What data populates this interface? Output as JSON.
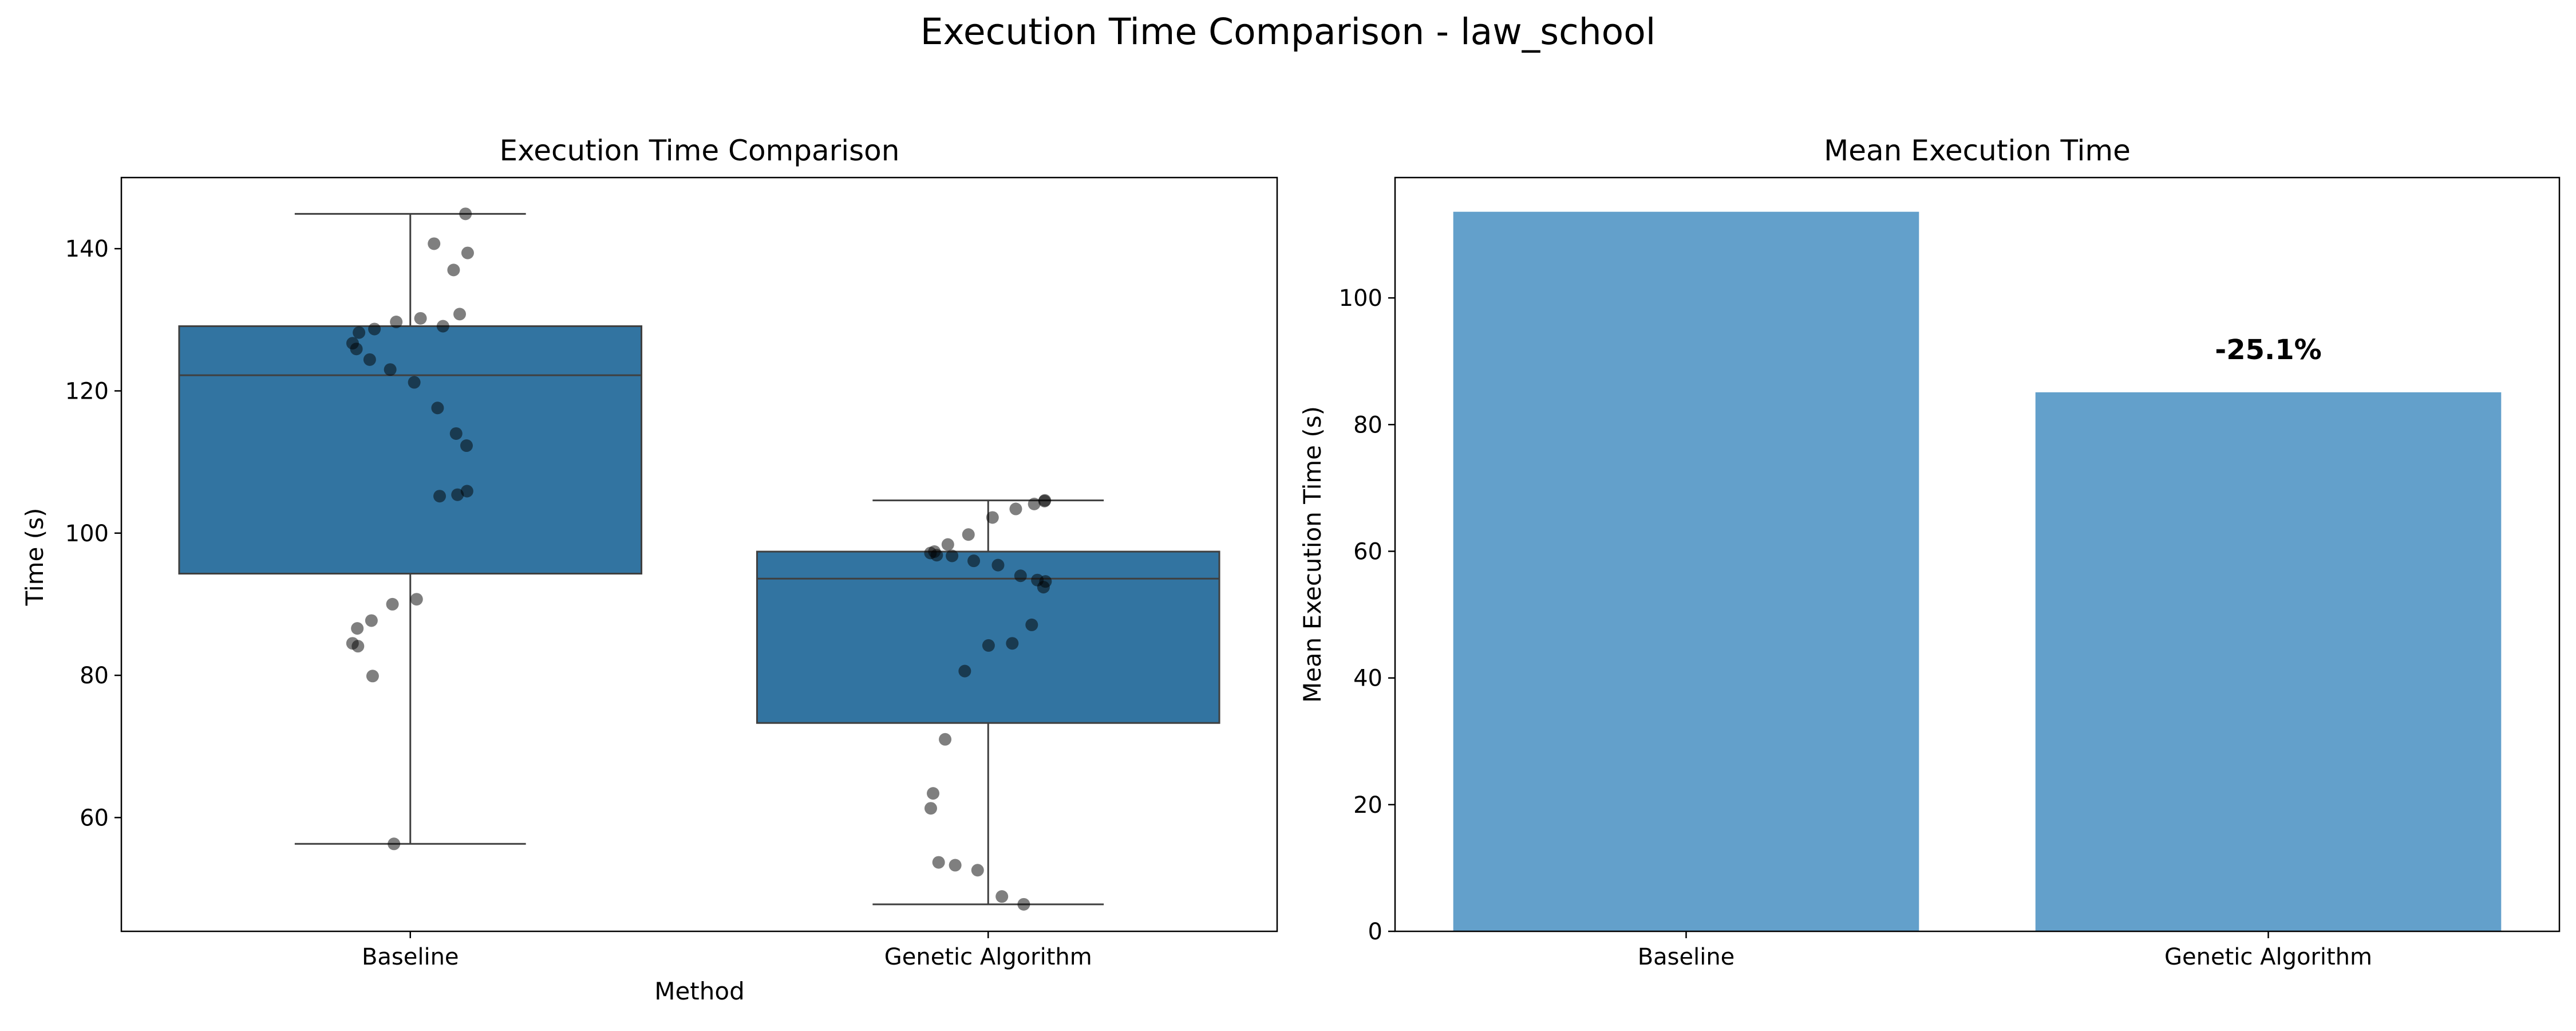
{
  "figure": {
    "suptitle": "Execution Time Comparison - law_school"
  },
  "chart_data": [
    {
      "type": "box",
      "title": "Execution Time Comparison",
      "xlabel": "Method",
      "ylabel": "Time (s)",
      "categories": [
        "Baseline",
        "Genetic Algorithm"
      ],
      "ylim": [
        44,
        150
      ],
      "yticks": [
        60,
        80,
        100,
        120,
        140
      ],
      "grid": false,
      "box_color": "#3274a1",
      "point_color": "#000000",
      "boxes": [
        {
          "name": "Baseline",
          "whisker_low": 56.3,
          "q1": 94.3,
          "median": 122.2,
          "q3": 129.1,
          "whisker_high": 144.9,
          "points": [
            140.7,
            137.0,
            144.9,
            139.4,
            130.8,
            129.1,
            130.2,
            129.7,
            128.7,
            128.2,
            126.7,
            125.9,
            124.4,
            123.0,
            121.2,
            117.6,
            114.0,
            112.3,
            105.9,
            105.4,
            105.2,
            90.7,
            90.0,
            87.7,
            86.6,
            84.5,
            84.1,
            79.9,
            56.3
          ]
        },
        {
          "name": "Genetic Algorithm",
          "whisker_low": 47.8,
          "q1": 73.3,
          "median": 93.6,
          "q3": 97.4,
          "whisker_high": 104.6,
          "points": [
            104.6,
            104.5,
            104.1,
            103.4,
            102.2,
            99.8,
            98.4,
            97.4,
            97.2,
            96.9,
            96.8,
            96.1,
            95.5,
            94.0,
            93.4,
            93.2,
            92.4,
            87.1,
            84.5,
            84.2,
            80.6,
            71.0,
            63.4,
            61.3,
            53.7,
            53.3,
            52.6,
            48.9,
            47.8
          ]
        }
      ]
    },
    {
      "type": "bar",
      "title": "Mean Execution Time",
      "xlabel": "",
      "ylabel": "Mean Execution Time (s)",
      "categories": [
        "Baseline",
        "Genetic Algorithm"
      ],
      "values": [
        113.6,
        85.1
      ],
      "ylim": [
        0,
        119
      ],
      "yticks": [
        0,
        20,
        40,
        60,
        80,
        100
      ],
      "grid": false,
      "bar_color": "#63a0cb",
      "annotations": [
        {
          "category": "Genetic Algorithm",
          "text": "-25.1%"
        }
      ]
    }
  ]
}
